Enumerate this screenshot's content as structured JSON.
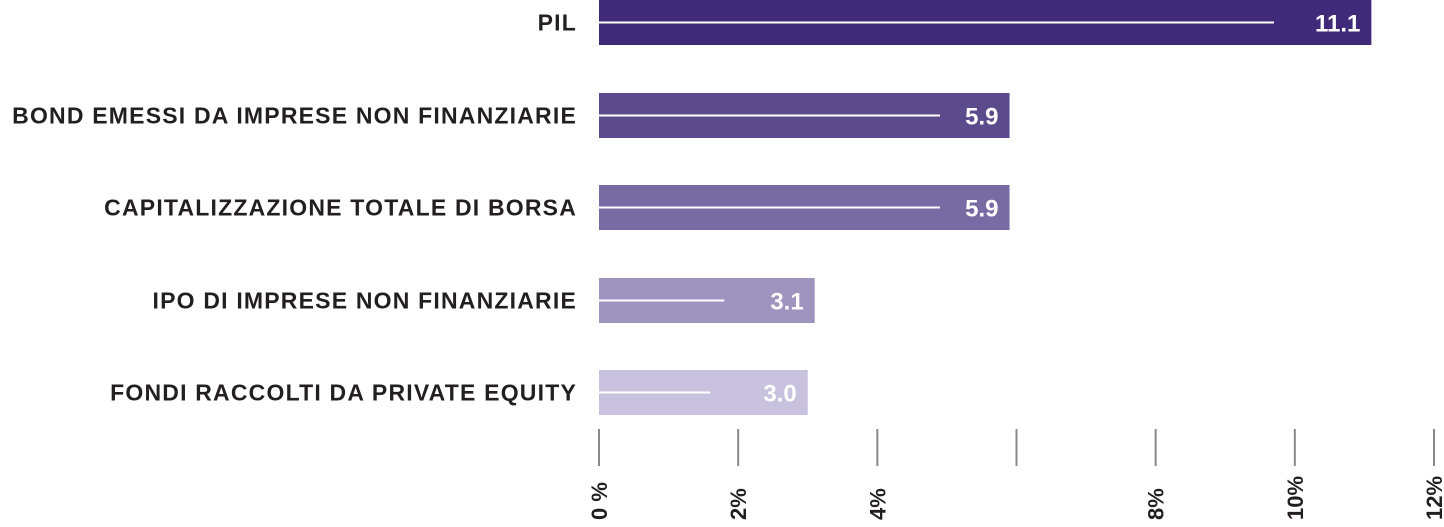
{
  "chart_data": {
    "type": "bar",
    "orientation": "horizontal",
    "title": "",
    "xlabel": "",
    "ylabel": "",
    "categories": [
      "PIL",
      "BOND EMESSI DA IMPRESE NON FINANZIARIE",
      "CAPITALIZZAZIONE TOTALE DI BORSA",
      "IPO DI IMPRESE NON FINANZIARIE",
      "FONDI RACCOLTI DA PRIVATE EQUITY"
    ],
    "values": [
      11.1,
      5.9,
      5.9,
      3.1,
      3.0
    ],
    "value_labels": [
      "11.1",
      "5.9",
      "5.9",
      "3.1",
      "3.0"
    ],
    "reference_values": [
      9.7,
      4.9,
      4.9,
      1.8,
      1.6
    ],
    "bar_colors": [
      "#3f2a7a",
      "#5b4a8c",
      "#786aa3",
      "#9f93bf",
      "#c9c2de"
    ],
    "xlim": [
      0,
      12
    ],
    "x_ticks": [
      0,
      2,
      4,
      6,
      8,
      10,
      12
    ],
    "x_tick_labels": [
      "0 %",
      "2%",
      "4%",
      "",
      "8%",
      "10%",
      "12%"
    ],
    "grid": false,
    "legend": "none"
  }
}
